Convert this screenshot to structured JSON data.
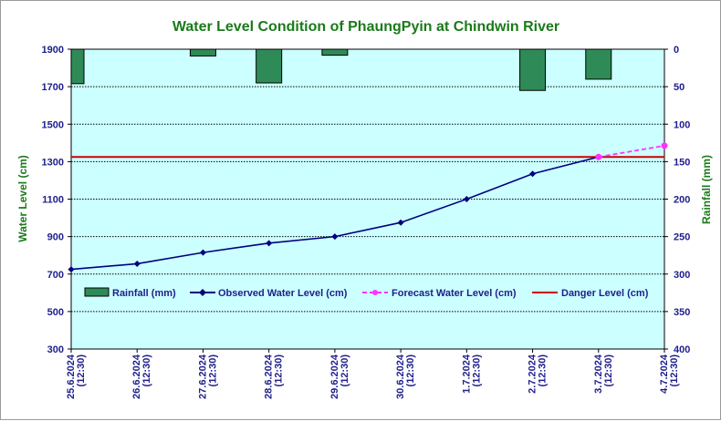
{
  "chart_data": {
    "type": "bar+line",
    "title": "Water Level Condition of PhaungPyin at Chindwin River",
    "ylabel_left": "Water Level (cm)",
    "ylabel_right": "Rainfall (mm)",
    "categories": [
      "25.6.2024",
      "26.6.2024",
      "27.6.2024",
      "28.6.2024",
      "29.6.2024",
      "30.6.2024",
      "1.7.2024",
      "2.7.2024",
      "3.7.2024",
      "4.7.2024"
    ],
    "category_sublabel": "(12:30)",
    "ylim_left": [
      300,
      1900
    ],
    "ylim_right": [
      0,
      400
    ],
    "yticks_left": [
      300,
      500,
      700,
      900,
      1100,
      1300,
      1500,
      1700,
      1900
    ],
    "yticks_right": [
      0,
      50,
      100,
      150,
      200,
      250,
      300,
      350,
      400
    ],
    "right_axis_reversed": true,
    "grid": "horizontal",
    "legend_position": "inside-bottom",
    "series": [
      {
        "name": "Rainfall (mm)",
        "kind": "bar",
        "axis": "right",
        "color": "#2e8b57",
        "values": [
          46,
          0,
          9,
          45,
          8,
          0,
          0,
          55,
          40,
          0
        ]
      },
      {
        "name": "Observed Water Level (cm)",
        "kind": "line",
        "axis": "left",
        "color": "#00007f",
        "values": [
          725,
          755,
          815,
          865,
          900,
          975,
          1100,
          1235,
          1325,
          null
        ]
      },
      {
        "name": "Forecast Water Level (cm)",
        "kind": "dashed-line",
        "axis": "left",
        "color": "#ff33ff",
        "values": [
          null,
          null,
          null,
          null,
          null,
          null,
          null,
          null,
          1325,
          1385
        ]
      },
      {
        "name": "Danger Level (cm)",
        "kind": "hline",
        "axis": "left",
        "color": "#cc0000",
        "value": 1325
      }
    ]
  }
}
